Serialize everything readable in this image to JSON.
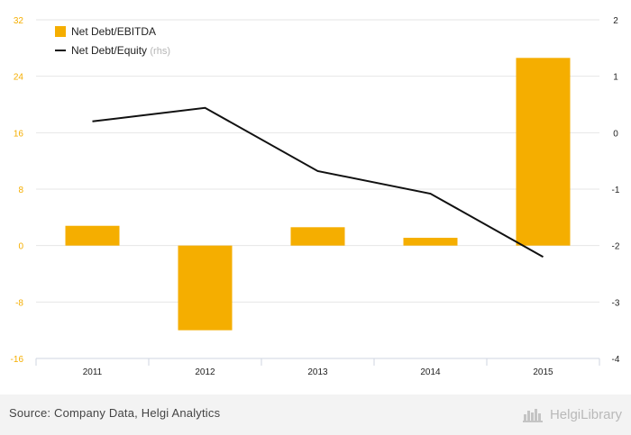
{
  "chart_data": {
    "type": "bar+line",
    "categories": [
      "2011",
      "2012",
      "2013",
      "2014",
      "2015"
    ],
    "series": [
      {
        "name": "Net Debt/EBITDA",
        "type": "bar",
        "axis": "left",
        "color": "#f5ae00",
        "values": [
          2.8,
          -12.0,
          2.6,
          1.1,
          26.6
        ]
      },
      {
        "name": "Net Debt/Equity",
        "axis_note": "(rhs)",
        "type": "line",
        "axis": "right",
        "color": "#111111",
        "values": [
          0.2,
          0.44,
          -0.68,
          -1.08,
          -2.2
        ]
      }
    ],
    "left_axis": {
      "range": [
        -16,
        32
      ],
      "ticks": [
        "-16",
        "-8",
        "0",
        "8",
        "16",
        "24",
        "32"
      ],
      "color": "#f5ae00"
    },
    "right_axis": {
      "range": [
        -4,
        2
      ],
      "ticks": [
        "-4",
        "-3",
        "-2",
        "-1",
        "0",
        "1",
        "2"
      ]
    },
    "grid": true,
    "legend": "top-left"
  },
  "footer": {
    "source": "Source: Company Data, Helgi Analytics",
    "brand": "HelgiLibrary",
    "brand_icon": "helgi-logo-icon"
  }
}
